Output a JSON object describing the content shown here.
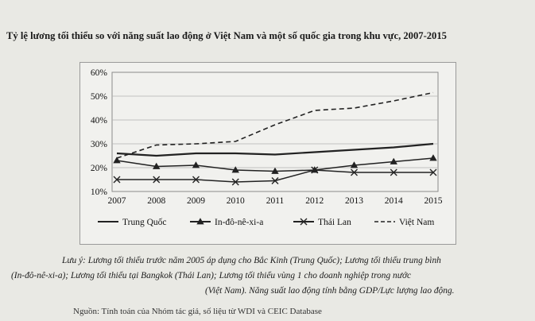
{
  "title": "Tỷ lệ lương tối thiểu so với năng suất lao động ở Việt Nam và một số quốc gia trong khu vực, 2007-2015",
  "chart_data": {
    "type": "line",
    "title": "Tỷ lệ lương tối thiểu so với năng suất lao động ở Việt Nam và một số quốc gia trong khu vực, 2007-2015",
    "xlabel": "",
    "ylabel": "",
    "categories": [
      "2007",
      "2008",
      "2009",
      "2010",
      "2011",
      "2012",
      "2013",
      "2014",
      "2015"
    ],
    "y_ticks": [
      "10%",
      "20%",
      "30%",
      "40%",
      "50%",
      "60%"
    ],
    "ylim": [
      10,
      60
    ],
    "grid": true,
    "legend_position": "bottom",
    "series": [
      {
        "name": "Trung Quốc",
        "style": "solid",
        "marker": "none",
        "values": [
          26,
          25,
          26,
          26,
          25.5,
          26.5,
          27.5,
          28.5,
          30
        ]
      },
      {
        "name": "In-đô-nê-xi-a",
        "style": "solid",
        "marker": "triangle",
        "values": [
          23,
          20.5,
          21,
          19,
          18.5,
          19,
          21,
          22.5,
          24
        ]
      },
      {
        "name": "Thái Lan",
        "style": "solid",
        "marker": "x",
        "values": [
          15,
          15,
          15,
          14,
          14.5,
          19,
          18,
          18,
          18
        ]
      },
      {
        "name": "Việt Nam",
        "style": "dashed",
        "marker": "none",
        "values": [
          24,
          29.5,
          30,
          31,
          38,
          44,
          45,
          48,
          51.5
        ]
      }
    ]
  },
  "notes": [
    "Lưu ý: Lương tối thiểu trước năm 2005 áp dụng cho Bắc Kinh (Trung Quốc); Lương tối thiểu trung bình",
    "(In-đô-nê-xi-a); Lương tối thiểu tại Bangkok (Thái Lan); Lương tối thiểu vùng 1 cho doanh nghiệp trong nước",
    "(Việt Nam). Năng suất lao động tính bằng GDP/Lực lượng lao động."
  ],
  "source": "Nguồn: Tính toán của Nhóm tác giả, số liệu từ WDI và CEIC Database"
}
